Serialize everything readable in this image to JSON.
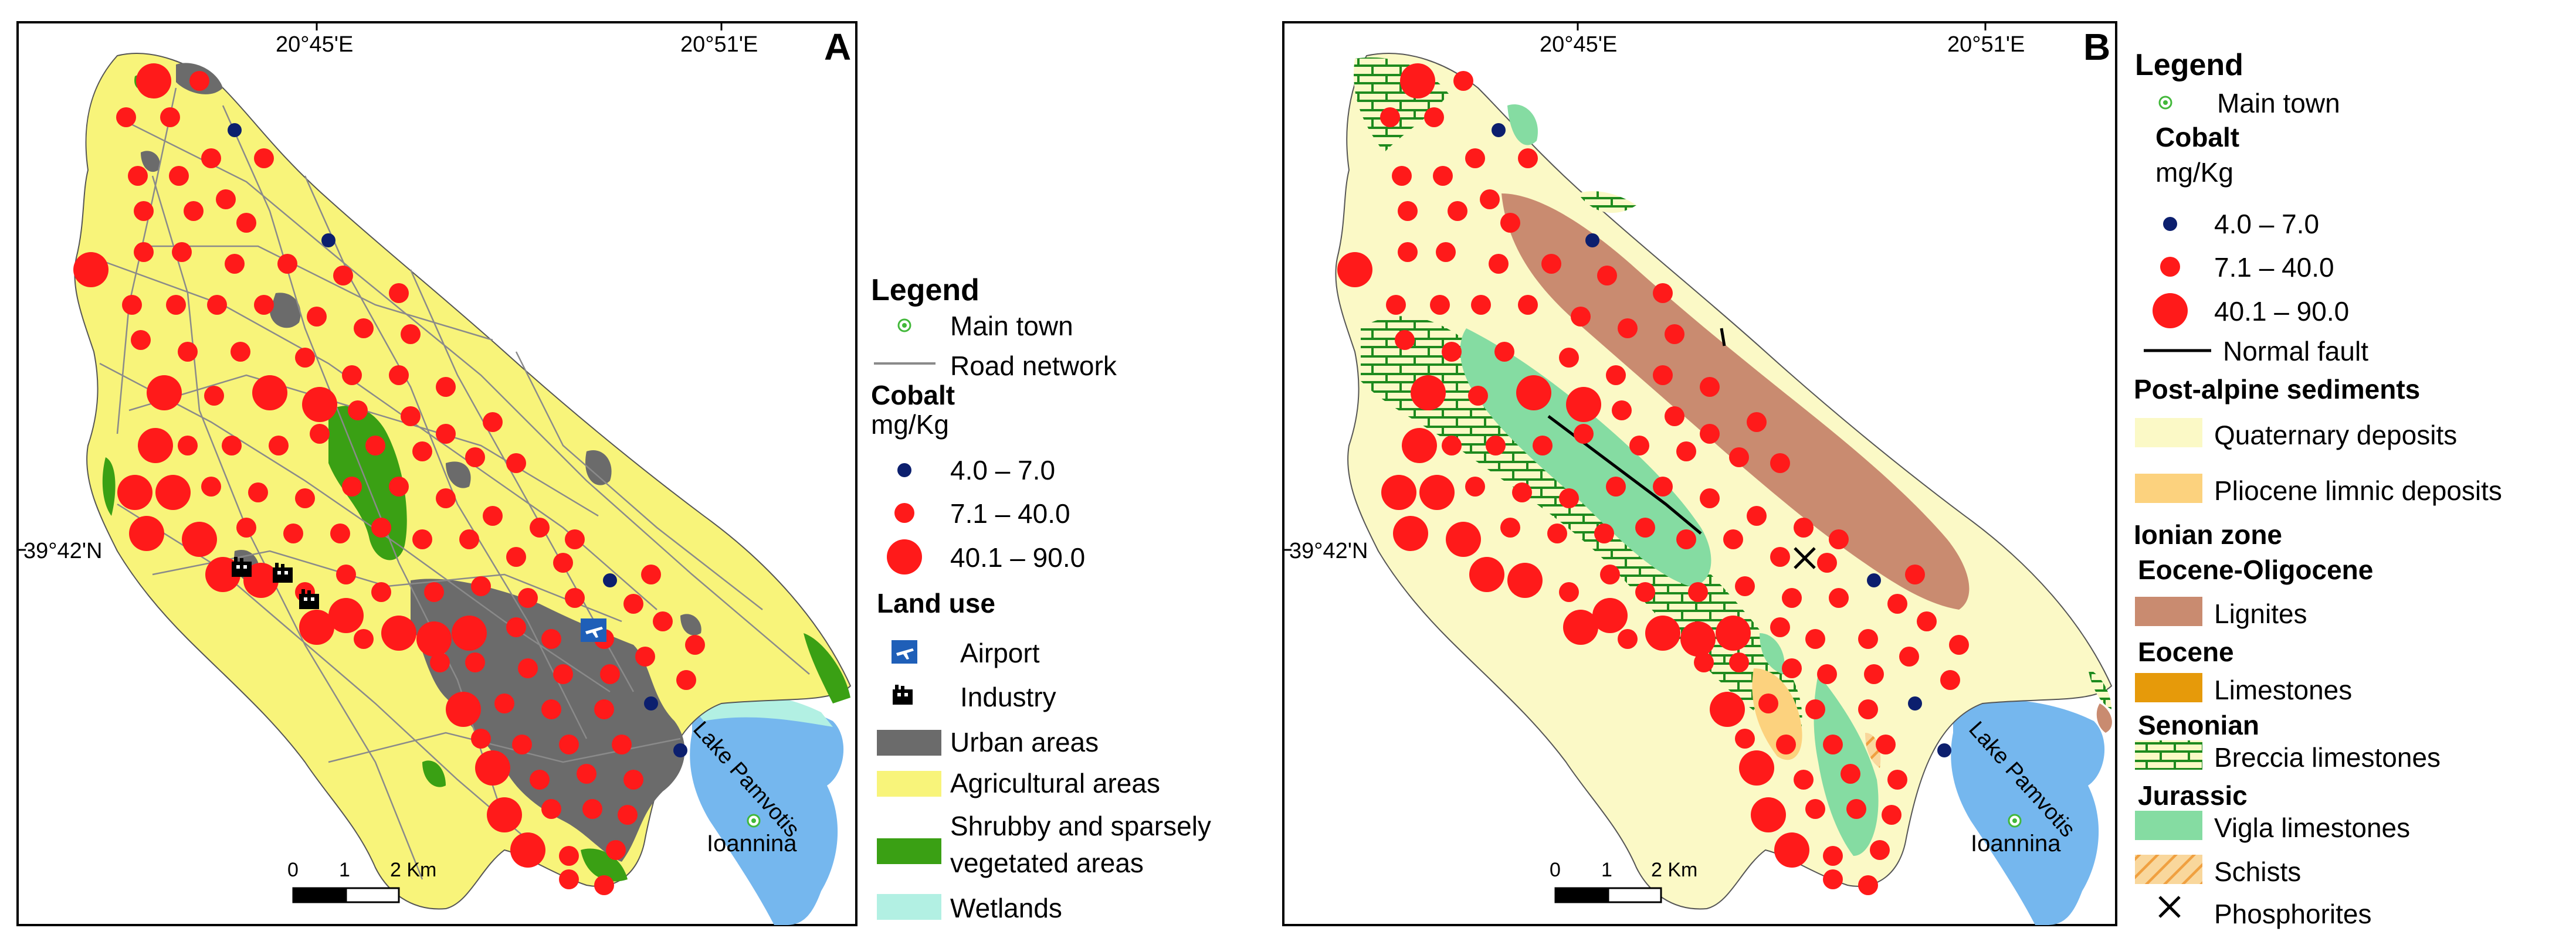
{
  "colors": {
    "urban": "#6b6b6b",
    "agricultural": "#f8f47a",
    "shrubby": "#3aa014",
    "wetlands": "#b2f0e3",
    "lake": "#75b7ee",
    "quaternary": "#fbf9c6",
    "pliocene": "#fcd27e",
    "lignites": "#c98b70",
    "limestones": "#e69a0a",
    "breccia": "#1e8a1e",
    "vigla": "#85dca2",
    "schists": "#f6c27a",
    "cobalt_low": "#0c1f6e",
    "cobalt_mid": "#ff1a1a",
    "road": "#8a8a8a",
    "town": "#42b83a"
  },
  "panel_a": {
    "label": "A",
    "lon_ticks": [
      "20°45'E",
      "20°51'E"
    ],
    "lat_tick": "39°42'N",
    "lake_label": "Lake Pamvotis",
    "town_label": "Ioannina",
    "scale_labels": [
      "0",
      "1",
      "2 Km"
    ],
    "legend": {
      "title": "Legend",
      "main_town": "Main town",
      "road_network": "Road network",
      "cobalt_title": "Cobalt",
      "cobalt_unit": "mg/Kg",
      "classes": [
        "4.0 – 7.0",
        "7.1 – 40.0",
        "40.1 – 90.0"
      ],
      "land_use_title": "Land use",
      "airport": "Airport",
      "industry": "Industry",
      "urban": "Urban areas",
      "agricultural": "Agricultural areas",
      "shrubby_1": "Shrubby and  sparsely",
      "shrubby_2": "vegetated areas",
      "wetlands": "Wetlands"
    }
  },
  "panel_b": {
    "label": "B",
    "lon_ticks": [
      "20°45'E",
      "20°51'E"
    ],
    "lat_tick": "39°42'N",
    "lake_label": "Lake Pamvotis",
    "town_label": "Ioannina",
    "scale_labels": [
      "0",
      "1",
      "2 Km"
    ],
    "legend": {
      "title": "Legend",
      "main_town": "Main town",
      "cobalt_title": "Cobalt",
      "cobalt_unit": "mg/Kg",
      "classes": [
        "4.0 – 7.0",
        "7.1 – 40.0",
        "40.1 – 90.0"
      ],
      "normal_fault": "Normal fault",
      "post_alpine": "Post-alpine sediments",
      "quaternary": "Quaternary deposits",
      "pliocene": "Pliocene limnic deposits",
      "ionian": "Ionian zone",
      "eocene_oligocene": "Eocene-Oligocene",
      "lignites": "Lignites",
      "eocene": "Eocene",
      "limestones": "Limestones",
      "senonian": "Senonian",
      "breccia": "Breccia limestones",
      "jurassic": "Jurassic",
      "vigla": "Vigla limestones",
      "schists": "Schists",
      "phosphorites": "Phosphorites"
    }
  }
}
